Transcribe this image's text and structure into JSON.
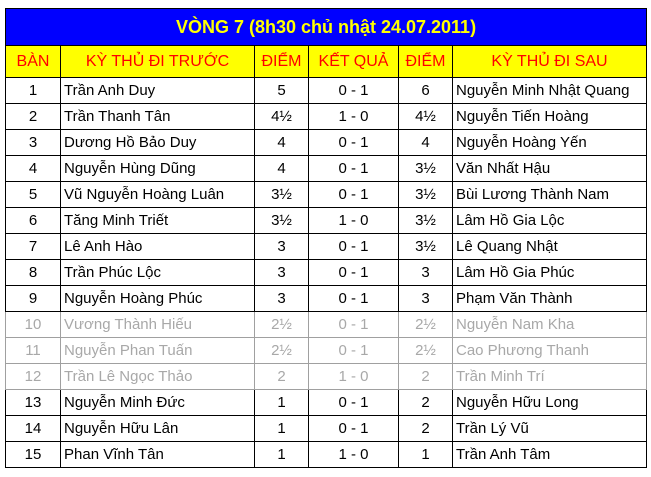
{
  "title": "VÒNG 7 (8h30 chủ nhật 24.07.2011)",
  "colors": {
    "title_bg": "#0000ff",
    "title_text": "#ffff00",
    "header_bg": "#ffff00",
    "header_text": "#ff0000"
  },
  "headers": [
    "BÀN",
    "KỲ THỦ ĐI TRƯỚC",
    "ĐIỂM",
    "KẾT QUẢ",
    "ĐIỂM",
    "KỲ THỦ ĐI SAU"
  ],
  "rows": [
    [
      "1",
      "Trần Anh Duy",
      "5",
      "0 - 1",
      "6",
      "Nguyễn Minh Nhật Quang"
    ],
    [
      "2",
      "Trần Thanh Tân",
      "4½",
      "1 - 0",
      "4½",
      "Nguyễn Tiến Hoàng"
    ],
    [
      "3",
      "Dương Hồ Bảo Duy",
      "4",
      "0 - 1",
      "4",
      "Nguyễn Hoàng Yến"
    ],
    [
      "4",
      "Nguyễn Hùng Dũng",
      "4",
      "0 - 1",
      "3½",
      "Văn Nhất Hậu"
    ],
    [
      "5",
      "Vũ Nguyễn Hoàng Luân",
      "3½",
      "0 - 1",
      "3½",
      "Bùi Lương Thành Nam"
    ],
    [
      "6",
      "Tăng Minh Triết",
      "3½",
      "1 - 0",
      "3½",
      "Lâm Hồ Gia Lộc"
    ],
    [
      "7",
      "Lê Anh Hào",
      "3",
      "0 - 1",
      "3½",
      "Lê Quang Nhật"
    ],
    [
      "8",
      "Trần Phúc Lộc",
      "3",
      "0 - 1",
      "3",
      "Lâm Hồ Gia Phúc"
    ],
    [
      "9",
      "Nguyễn Hoàng Phúc",
      "3",
      "0 - 1",
      "3",
      "Phạm Văn Thành"
    ],
    [
      "10",
      "Vương Thành Hiếu",
      "2½",
      "0 - 1",
      "2½",
      "Nguyễn Nam Kha"
    ],
    [
      "11",
      "Nguyễn Phan Tuấn",
      "2½",
      "0 - 1",
      "2½",
      "Cao Phương Thanh"
    ],
    [
      "12",
      "Trần Lê Ngọc Thảo",
      "2",
      "1 - 0",
      "2",
      "Trần Minh Trí"
    ],
    [
      "13",
      "Nguyễn Minh Đức",
      "1",
      "0 - 1",
      "2",
      "Nguyễn Hữu Long"
    ],
    [
      "14",
      "Nguyễn Hữu Lân",
      "1",
      "0 - 1",
      "2",
      "Trần Lý Vũ"
    ],
    [
      "15",
      "Phan Vĩnh Tân",
      "1",
      "1 - 0",
      "1",
      "Trần Anh Tâm"
    ]
  ]
}
